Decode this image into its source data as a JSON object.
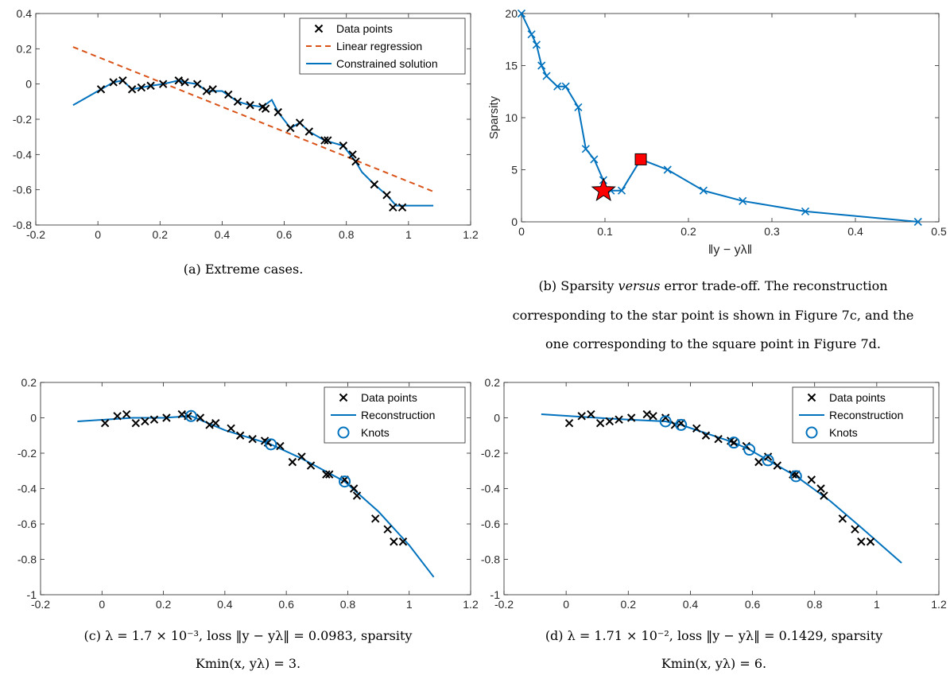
{
  "captions": {
    "a": "(a) Extreme cases.",
    "b1_pre": "(b) Sparsity ",
    "b1_it": "versus",
    "b1_post": " error trade-off. The reconstruction",
    "b2": "corresponding to the star point is shown in Figure 7c, and the",
    "b3": "one corresponding to the square point in Figure 7d.",
    "c1": "(c) λ = 1.7 × 10⁻³, loss ‖y − yλ‖ = 0.0983, sparsity",
    "c2": "Kmin(x, yλ) = 3.",
    "d1": "(d) λ = 1.71 × 10⁻², loss ‖y − yλ‖ = 0.1429, sparsity",
    "d2": "Kmin(x, yλ) = 6."
  },
  "colors": {
    "data": "#000000",
    "blue": "#0072BD",
    "orange": "#D95319",
    "red": "#FF0000"
  },
  "chart_data": [
    {
      "type": "line",
      "id": "a",
      "xlim": [
        -0.2,
        1.2
      ],
      "ylim": [
        -0.8,
        0.4
      ],
      "xticks": [
        -0.2,
        0,
        0.2,
        0.4,
        0.6,
        0.8,
        1,
        1.2
      ],
      "yticks": [
        -0.8,
        -0.6,
        -0.4,
        -0.2,
        0,
        0.2,
        0.4
      ],
      "xtick_labels": [
        "-0.2",
        "0",
        "0.2",
        "0.4",
        "0.6",
        "0.8",
        "1",
        "1.2"
      ],
      "ytick_labels": [
        "-0.8",
        "-0.6",
        "-0.4",
        "-0.2",
        "0",
        "0.2",
        "0.4"
      ],
      "legend_position": "top-right",
      "legend": [
        "Data points",
        "Linear regression",
        "Constrained solution"
      ],
      "data_points": {
        "x": [
          0.01,
          0.05,
          0.08,
          0.11,
          0.14,
          0.17,
          0.21,
          0.26,
          0.28,
          0.32,
          0.35,
          0.37,
          0.42,
          0.45,
          0.49,
          0.53,
          0.54,
          0.58,
          0.62,
          0.65,
          0.68,
          0.73,
          0.74,
          0.79,
          0.82,
          0.83,
          0.89,
          0.93,
          0.95,
          0.98
        ],
        "y": [
          -0.03,
          0.01,
          0.02,
          -0.03,
          -0.02,
          -0.01,
          0.0,
          0.02,
          0.01,
          0.0,
          -0.04,
          -0.03,
          -0.06,
          -0.1,
          -0.12,
          -0.13,
          -0.14,
          -0.16,
          -0.25,
          -0.22,
          -0.27,
          -0.32,
          -0.32,
          -0.35,
          -0.4,
          -0.44,
          -0.57,
          -0.63,
          -0.7,
          -0.7
        ]
      },
      "linear_regression": {
        "x": [
          -0.08,
          1.08
        ],
        "y": [
          0.21,
          -0.61
        ]
      },
      "constrained_solution": {
        "x": [
          -0.08,
          0.01,
          0.05,
          0.08,
          0.11,
          0.14,
          0.17,
          0.21,
          0.26,
          0.28,
          0.32,
          0.35,
          0.4,
          0.45,
          0.49,
          0.53,
          0.56,
          0.58,
          0.62,
          0.65,
          0.68,
          0.73,
          0.79,
          0.83,
          0.85,
          0.89,
          0.93,
          0.96,
          0.98,
          1.08
        ],
        "y": [
          -0.12,
          -0.03,
          0.01,
          0.02,
          -0.03,
          -0.02,
          -0.01,
          0.0,
          0.02,
          0.01,
          0.0,
          -0.04,
          -0.04,
          -0.1,
          -0.12,
          -0.13,
          -0.09,
          -0.16,
          -0.25,
          -0.22,
          -0.27,
          -0.32,
          -0.35,
          -0.44,
          -0.5,
          -0.57,
          -0.63,
          -0.69,
          -0.69,
          -0.69
        ]
      }
    },
    {
      "type": "line",
      "id": "b",
      "xlim": [
        0,
        0.5
      ],
      "ylim": [
        0,
        20
      ],
      "xticks": [
        0,
        0.1,
        0.2,
        0.3,
        0.4,
        0.5
      ],
      "yticks": [
        0,
        5,
        10,
        15,
        20
      ],
      "xtick_labels": [
        "0",
        "0.1",
        "0.2",
        "0.3",
        "0.4",
        "0.5"
      ],
      "ytick_labels": [
        "0",
        "5",
        "10",
        "15",
        "20"
      ],
      "xlabel": "‖y − yλ‖",
      "ylabel": "Sparsity",
      "trade_off": {
        "x": [
          0.0,
          0.012,
          0.018,
          0.024,
          0.03,
          0.043,
          0.053,
          0.068,
          0.077,
          0.087,
          0.098,
          0.1,
          0.107,
          0.12,
          0.143,
          0.175,
          0.218,
          0.265,
          0.34,
          0.475
        ],
        "y": [
          20,
          18,
          17,
          15,
          14,
          13,
          13,
          11,
          7,
          6,
          4,
          3,
          3,
          3,
          6,
          5,
          3,
          2,
          1,
          0
        ]
      },
      "star_point": {
        "x": 0.0983,
        "y": 3
      },
      "square_point": {
        "x": 0.1429,
        "y": 6
      }
    },
    {
      "type": "line",
      "id": "c",
      "xlim": [
        -0.2,
        1.2
      ],
      "ylim": [
        -1,
        0.2
      ],
      "xticks": [
        -0.2,
        0,
        0.2,
        0.4,
        0.6,
        0.8,
        1,
        1.2
      ],
      "yticks": [
        -1,
        -0.8,
        -0.6,
        -0.4,
        -0.2,
        0,
        0.2
      ],
      "xtick_labels": [
        "-0.2",
        "0",
        "0.2",
        "0.4",
        "0.6",
        "0.8",
        "1",
        "1.2"
      ],
      "ytick_labels": [
        "-1",
        "-0.8",
        "-0.6",
        "-0.4",
        "-0.2",
        "0",
        "0.2"
      ],
      "legend_position": "top-right",
      "legend": [
        "Data points",
        "Reconstruction",
        "Knots"
      ],
      "data_points": {
        "x": [
          0.01,
          0.05,
          0.08,
          0.11,
          0.14,
          0.17,
          0.21,
          0.26,
          0.28,
          0.32,
          0.35,
          0.37,
          0.42,
          0.45,
          0.49,
          0.53,
          0.54,
          0.58,
          0.62,
          0.65,
          0.68,
          0.73,
          0.74,
          0.79,
          0.82,
          0.83,
          0.89,
          0.93,
          0.95,
          0.98
        ],
        "y": [
          -0.03,
          0.01,
          0.02,
          -0.03,
          -0.02,
          -0.01,
          0.0,
          0.02,
          0.01,
          0.0,
          -0.04,
          -0.03,
          -0.06,
          -0.1,
          -0.12,
          -0.13,
          -0.14,
          -0.16,
          -0.25,
          -0.22,
          -0.27,
          -0.32,
          -0.32,
          -0.35,
          -0.4,
          -0.44,
          -0.57,
          -0.63,
          -0.7,
          -0.7
        ]
      },
      "reconstruction": {
        "x": [
          -0.08,
          0.1,
          0.2,
          0.29,
          0.4,
          0.55,
          0.65,
          0.79,
          0.9,
          1.0,
          1.08
        ],
        "y": [
          -0.02,
          0.0,
          0.0,
          0.01,
          -0.07,
          -0.15,
          -0.23,
          -0.36,
          -0.53,
          -0.72,
          -0.9
        ]
      },
      "knots": {
        "x": [
          0.29,
          0.55,
          0.79
        ],
        "y": [
          0.01,
          -0.15,
          -0.36
        ]
      }
    },
    {
      "type": "line",
      "id": "d",
      "xlim": [
        -0.2,
        1.2
      ],
      "ylim": [
        -1,
        0.2
      ],
      "xticks": [
        -0.2,
        0,
        0.2,
        0.4,
        0.6,
        0.8,
        1,
        1.2
      ],
      "yticks": [
        -1,
        -0.8,
        -0.6,
        -0.4,
        -0.2,
        0,
        0.2
      ],
      "xtick_labels": [
        "-0.2",
        "0",
        "0.2",
        "0.4",
        "0.6",
        "0.8",
        "1",
        "1.2"
      ],
      "ytick_labels": [
        "-1",
        "-0.8",
        "-0.6",
        "-0.4",
        "-0.2",
        "0",
        "0.2"
      ],
      "legend_position": "top-right",
      "legend": [
        "Data points",
        "Reconstruction",
        "Knots"
      ],
      "data_points": {
        "x": [
          0.01,
          0.05,
          0.08,
          0.11,
          0.14,
          0.17,
          0.21,
          0.26,
          0.28,
          0.32,
          0.35,
          0.37,
          0.42,
          0.45,
          0.49,
          0.53,
          0.54,
          0.58,
          0.62,
          0.65,
          0.68,
          0.73,
          0.74,
          0.79,
          0.82,
          0.83,
          0.89,
          0.93,
          0.95,
          0.98
        ],
        "y": [
          -0.03,
          0.01,
          0.02,
          -0.03,
          -0.02,
          -0.01,
          0.0,
          0.02,
          0.01,
          0.0,
          -0.04,
          -0.03,
          -0.06,
          -0.1,
          -0.12,
          -0.13,
          -0.14,
          -0.16,
          -0.25,
          -0.22,
          -0.27,
          -0.32,
          -0.32,
          -0.35,
          -0.4,
          -0.44,
          -0.57,
          -0.63,
          -0.7,
          -0.7
        ]
      },
      "reconstruction": {
        "x": [
          -0.08,
          0.1,
          0.2,
          0.32,
          0.37,
          0.54,
          0.59,
          0.65,
          0.74,
          0.85,
          0.95,
          1.08
        ],
        "y": [
          0.02,
          0.0,
          -0.01,
          -0.02,
          -0.04,
          -0.14,
          -0.18,
          -0.24,
          -0.33,
          -0.47,
          -0.62,
          -0.82
        ]
      },
      "knots": {
        "x": [
          0.32,
          0.37,
          0.54,
          0.59,
          0.65,
          0.74
        ],
        "y": [
          -0.02,
          -0.04,
          -0.14,
          -0.18,
          -0.24,
          -0.33
        ]
      }
    }
  ]
}
